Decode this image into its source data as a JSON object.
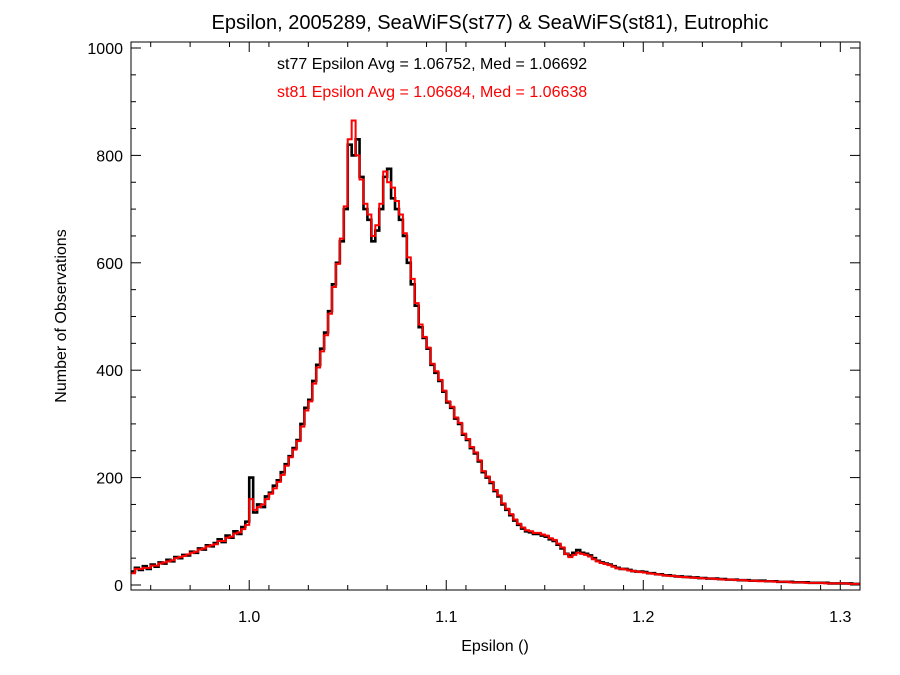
{
  "chart_data": {
    "type": "line",
    "subtype": "step-histogram",
    "title": "Epsilon, 2005289, SeaWiFS(st77) & SeaWiFS(st81), Eutrophic",
    "xlabel": "Epsilon ()",
    "ylabel": "Number of Observations",
    "xlim": [
      0.94,
      1.31
    ],
    "ylim": [
      0,
      1000
    ],
    "x_ticks": [
      1.0,
      1.1,
      1.2,
      1.3
    ],
    "x_tick_labels": [
      "1.0",
      "1.1",
      "1.2",
      "1.3"
    ],
    "y_ticks": [
      0,
      200,
      400,
      600,
      800,
      1000
    ],
    "y_tick_labels": [
      "0",
      "200",
      "400",
      "600",
      "800",
      "1000"
    ],
    "grid": false,
    "annotations": [
      {
        "text": "st77 Epsilon Avg = 1.06752, Med = 1.06692",
        "color": "#000000"
      },
      {
        "text": "st81 Epsilon Avg = 1.06684, Med = 1.06638",
        "color": "#ff0000"
      }
    ],
    "bin_width": 0.002,
    "series": [
      {
        "color": "#000000",
        "x": [
          0.94,
          0.942,
          0.944,
          0.946,
          0.948,
          0.95,
          0.952,
          0.954,
          0.956,
          0.958,
          0.96,
          0.962,
          0.964,
          0.966,
          0.968,
          0.97,
          0.972,
          0.974,
          0.976,
          0.978,
          0.98,
          0.982,
          0.984,
          0.986,
          0.988,
          0.99,
          0.992,
          0.994,
          0.996,
          0.998,
          1.0,
          1.002,
          1.004,
          1.006,
          1.008,
          1.01,
          1.012,
          1.014,
          1.016,
          1.018,
          1.02,
          1.022,
          1.024,
          1.026,
          1.028,
          1.03,
          1.032,
          1.034,
          1.036,
          1.038,
          1.04,
          1.042,
          1.044,
          1.046,
          1.048,
          1.05,
          1.052,
          1.054,
          1.056,
          1.058,
          1.06,
          1.062,
          1.064,
          1.066,
          1.068,
          1.07,
          1.072,
          1.074,
          1.076,
          1.078,
          1.08,
          1.082,
          1.084,
          1.086,
          1.088,
          1.09,
          1.092,
          1.094,
          1.096,
          1.098,
          1.1,
          1.102,
          1.104,
          1.106,
          1.108,
          1.11,
          1.112,
          1.114,
          1.116,
          1.118,
          1.12,
          1.122,
          1.124,
          1.126,
          1.128,
          1.13,
          1.132,
          1.134,
          1.136,
          1.138,
          1.14,
          1.142,
          1.144,
          1.146,
          1.148,
          1.15,
          1.152,
          1.154,
          1.156,
          1.158,
          1.16,
          1.162,
          1.164,
          1.166,
          1.168,
          1.17,
          1.172,
          1.174,
          1.176,
          1.178,
          1.18,
          1.182,
          1.184,
          1.186,
          1.188,
          1.19,
          1.192,
          1.194,
          1.196,
          1.198,
          1.2,
          1.202,
          1.204,
          1.206,
          1.208,
          1.21,
          1.212,
          1.214,
          1.216,
          1.218,
          1.22,
          1.222,
          1.224,
          1.226,
          1.228,
          1.23,
          1.232,
          1.234,
          1.236,
          1.238,
          1.24,
          1.242,
          1.244,
          1.246,
          1.248,
          1.25,
          1.252,
          1.254,
          1.256,
          1.258,
          1.26,
          1.262,
          1.264,
          1.266,
          1.268,
          1.27,
          1.272,
          1.274,
          1.276,
          1.278,
          1.28,
          1.282,
          1.284,
          1.286,
          1.288,
          1.29,
          1.292,
          1.294,
          1.296,
          1.298,
          1.3,
          1.302,
          1.304,
          1.306,
          1.308
        ],
        "values": [
          25,
          32,
          28,
          35,
          30,
          38,
          34,
          42,
          40,
          47,
          44,
          52,
          50,
          56,
          55,
          62,
          60,
          68,
          66,
          74,
          72,
          78,
          85,
          80,
          92,
          88,
          100,
          95,
          108,
          118,
          200,
          135,
          150,
          145,
          165,
          172,
          185,
          195,
          210,
          225,
          240,
          255,
          270,
          300,
          330,
          345,
          380,
          410,
          440,
          470,
          510,
          560,
          600,
          640,
          700,
          820,
          800,
          830,
          760,
          700,
          680,
          640,
          660,
          700,
          760,
          775,
          720,
          700,
          680,
          650,
          600,
          560,
          520,
          480,
          460,
          440,
          410,
          395,
          380,
          360,
          340,
          330,
          310,
          300,
          280,
          270,
          255,
          245,
          230,
          210,
          200,
          190,
          175,
          165,
          150,
          140,
          130,
          120,
          112,
          105,
          100,
          98,
          95,
          95,
          92,
          90,
          85,
          82,
          75,
          68,
          58,
          55,
          60,
          65,
          60,
          58,
          55,
          50,
          45,
          42,
          40,
          38,
          35,
          32,
          30,
          30,
          28,
          26,
          25,
          25,
          24,
          22,
          22,
          20,
          20,
          18,
          18,
          17,
          16,
          16,
          15,
          15,
          14,
          14,
          13,
          13,
          12,
          12,
          12,
          11,
          11,
          10,
          10,
          10,
          9,
          9,
          9,
          8,
          8,
          8,
          8,
          7,
          7,
          7,
          6,
          6,
          6,
          6,
          5,
          5,
          5,
          5,
          4,
          4,
          4,
          4,
          4,
          3,
          3,
          3,
          3,
          3,
          3,
          2,
          2
        ]
      },
      {
        "color": "#ff0000",
        "x": [
          0.94,
          0.942,
          0.944,
          0.946,
          0.948,
          0.95,
          0.952,
          0.954,
          0.956,
          0.958,
          0.96,
          0.962,
          0.964,
          0.966,
          0.968,
          0.97,
          0.972,
          0.974,
          0.976,
          0.978,
          0.98,
          0.982,
          0.984,
          0.986,
          0.988,
          0.99,
          0.992,
          0.994,
          0.996,
          0.998,
          1.0,
          1.002,
          1.004,
          1.006,
          1.008,
          1.01,
          1.012,
          1.014,
          1.016,
          1.018,
          1.02,
          1.022,
          1.024,
          1.026,
          1.028,
          1.03,
          1.032,
          1.034,
          1.036,
          1.038,
          1.04,
          1.042,
          1.044,
          1.046,
          1.048,
          1.05,
          1.052,
          1.054,
          1.056,
          1.058,
          1.06,
          1.062,
          1.064,
          1.066,
          1.068,
          1.07,
          1.072,
          1.074,
          1.076,
          1.078,
          1.08,
          1.082,
          1.084,
          1.086,
          1.088,
          1.09,
          1.092,
          1.094,
          1.096,
          1.098,
          1.1,
          1.102,
          1.104,
          1.106,
          1.108,
          1.11,
          1.112,
          1.114,
          1.116,
          1.118,
          1.12,
          1.122,
          1.124,
          1.126,
          1.128,
          1.13,
          1.132,
          1.134,
          1.136,
          1.138,
          1.14,
          1.142,
          1.144,
          1.146,
          1.148,
          1.15,
          1.152,
          1.154,
          1.156,
          1.158,
          1.16,
          1.162,
          1.164,
          1.166,
          1.168,
          1.17,
          1.172,
          1.174,
          1.176,
          1.178,
          1.18,
          1.182,
          1.184,
          1.186,
          1.188,
          1.19,
          1.192,
          1.194,
          1.196,
          1.198,
          1.2,
          1.202,
          1.204,
          1.206,
          1.208,
          1.21,
          1.212,
          1.214,
          1.216,
          1.218,
          1.22,
          1.222,
          1.224,
          1.226,
          1.228,
          1.23,
          1.232,
          1.234,
          1.236,
          1.238,
          1.24,
          1.242,
          1.244,
          1.246,
          1.248,
          1.25,
          1.252,
          1.254,
          1.256,
          1.258,
          1.26,
          1.262,
          1.264,
          1.266,
          1.268,
          1.27,
          1.272,
          1.274,
          1.276,
          1.278,
          1.28,
          1.282,
          1.284,
          1.286,
          1.288,
          1.29,
          1.292,
          1.294,
          1.296,
          1.298,
          1.3,
          1.302,
          1.304,
          1.306,
          1.308
        ],
        "values": [
          22,
          30,
          30,
          32,
          32,
          36,
          36,
          40,
          42,
          44,
          46,
          50,
          52,
          54,
          57,
          60,
          62,
          66,
          68,
          72,
          74,
          76,
          82,
          82,
          88,
          90,
          96,
          98,
          104,
          112,
          160,
          140,
          145,
          150,
          160,
          170,
          180,
          192,
          205,
          222,
          238,
          252,
          268,
          295,
          325,
          342,
          375,
          405,
          435,
          465,
          505,
          555,
          598,
          645,
          705,
          830,
          865,
          800,
          755,
          710,
          690,
          650,
          670,
          710,
          770,
          750,
          740,
          715,
          690,
          655,
          610,
          570,
          525,
          485,
          462,
          442,
          412,
          398,
          382,
          362,
          342,
          332,
          312,
          302,
          282,
          272,
          257,
          247,
          232,
          212,
          202,
          192,
          177,
          167,
          152,
          142,
          132,
          122,
          114,
          107,
          102,
          100,
          97,
          97,
          94,
          92,
          87,
          84,
          77,
          70,
          58,
          52,
          56,
          60,
          58,
          56,
          53,
          48,
          44,
          41,
          39,
          37,
          34,
          31,
          30,
          29,
          27,
          26,
          25,
          24,
          23,
          22,
          21,
          20,
          19,
          18,
          17,
          17,
          16,
          15,
          15,
          14,
          14,
          13,
          13,
          12,
          12,
          12,
          11,
          11,
          10,
          10,
          10,
          9,
          9,
          9,
          8,
          8,
          8,
          7,
          7,
          7,
          7,
          6,
          6,
          6,
          6,
          5,
          5,
          5,
          5,
          4,
          4,
          4,
          4,
          4,
          3,
          3,
          3,
          3,
          3,
          3,
          2,
          2,
          2
        ]
      }
    ]
  }
}
